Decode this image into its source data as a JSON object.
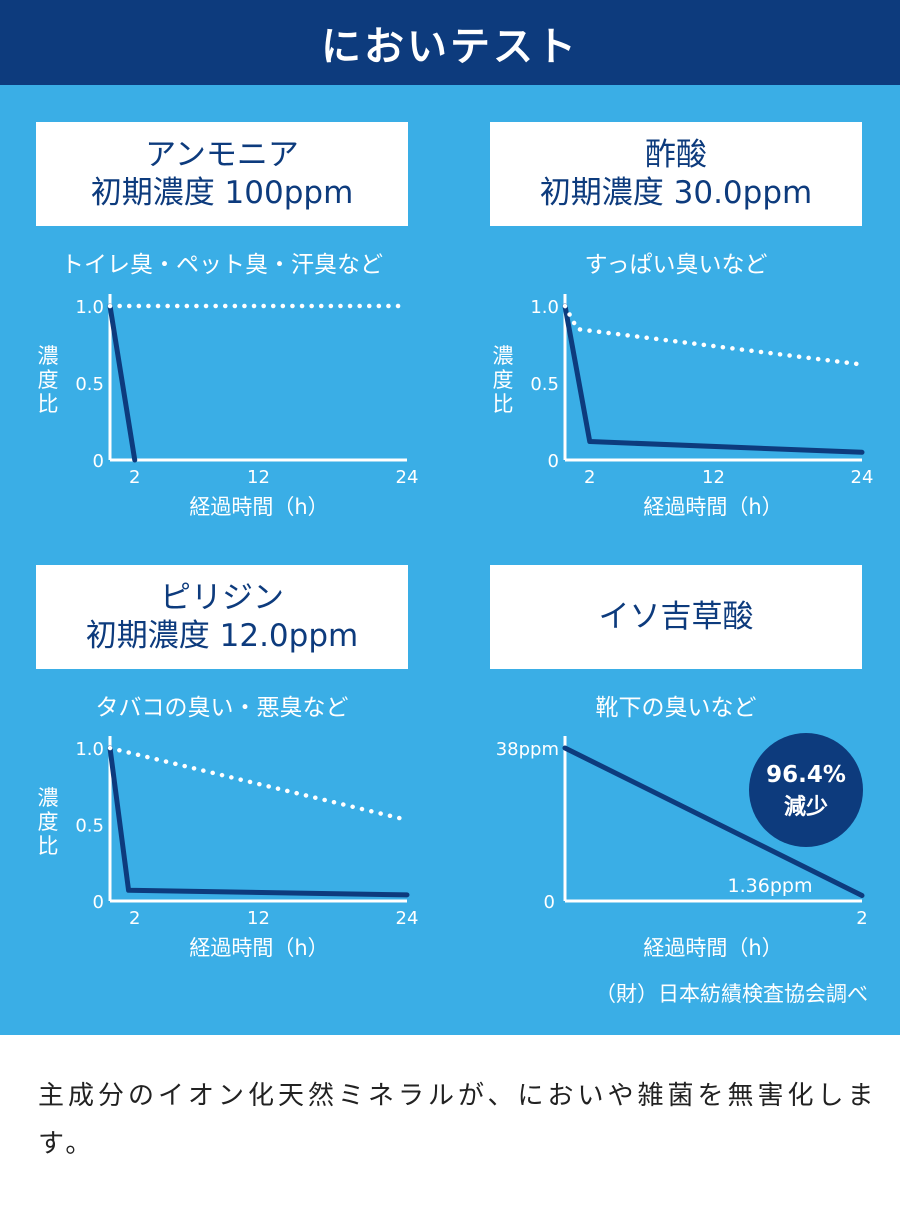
{
  "header": {
    "title": "においテスト"
  },
  "chart_data": [
    {
      "type": "line",
      "card": {
        "line1": "アンモニア",
        "line2": "初期濃度 100ppm"
      },
      "subtitle": "トイレ臭・ペット臭・汗臭など",
      "ylabel": "濃度比",
      "xlabel": "経過時間（h）",
      "yticks": [
        "1.0",
        "0.5",
        "0"
      ],
      "xticks": [
        "2",
        "12",
        "24"
      ],
      "xlim": [
        0,
        24
      ],
      "ylim": [
        0,
        1
      ],
      "series": [
        {
          "style": "solid",
          "points": [
            [
              0,
              1.0
            ],
            [
              2,
              0.0
            ]
          ]
        },
        {
          "style": "dotted",
          "points": [
            [
              0,
              1.0
            ],
            [
              24,
              1.0
            ]
          ]
        }
      ]
    },
    {
      "type": "line",
      "card": {
        "line1": "酢酸",
        "line2": "初期濃度 30.0ppm"
      },
      "subtitle": "すっぱい臭いなど",
      "ylabel": "濃度比",
      "xlabel": "経過時間（h）",
      "yticks": [
        "1.0",
        "0.5",
        "0"
      ],
      "xticks": [
        "2",
        "12",
        "24"
      ],
      "xlim": [
        0,
        24
      ],
      "ylim": [
        0,
        1
      ],
      "series": [
        {
          "style": "solid",
          "points": [
            [
              0,
              1.0
            ],
            [
              2,
              0.12
            ],
            [
              24,
              0.05
            ]
          ]
        },
        {
          "style": "dotted",
          "points": [
            [
              0,
              1.0
            ],
            [
              1,
              0.85
            ],
            [
              24,
              0.62
            ]
          ]
        }
      ]
    },
    {
      "type": "line",
      "card": {
        "line1": "ピリジン",
        "line2": "初期濃度 12.0ppm"
      },
      "subtitle": "タバコの臭い・悪臭など",
      "ylabel": "濃度比",
      "xlabel": "経過時間（h）",
      "yticks": [
        "1.0",
        "0.5",
        "0"
      ],
      "xticks": [
        "2",
        "12",
        "24"
      ],
      "xlim": [
        0,
        24
      ],
      "ylim": [
        0,
        1
      ],
      "series": [
        {
          "style": "solid",
          "points": [
            [
              0,
              1.0
            ],
            [
              1.5,
              0.07
            ],
            [
              24,
              0.04
            ]
          ]
        },
        {
          "style": "dotted",
          "points": [
            [
              0,
              1.0
            ],
            [
              24,
              0.53
            ]
          ]
        }
      ]
    },
    {
      "type": "line",
      "card": {
        "line1": "イソ吉草酸",
        "line2": ""
      },
      "subtitle": "靴下の臭いなど",
      "ylabel": "",
      "xlabel": "経過時間（h）",
      "ytick_top": "38ppm",
      "ytick_zero": "0",
      "xticks": [
        "2"
      ],
      "xlim": [
        0,
        2
      ],
      "ylim": [
        0,
        38
      ],
      "series": [
        {
          "style": "solid",
          "points": [
            [
              0,
              38
            ],
            [
              2,
              1.36
            ]
          ]
        }
      ],
      "end_label": "1.36ppm",
      "badge": {
        "line1": "96.4%",
        "line2": "減少"
      }
    }
  ],
  "source": "（財）日本紡績検査協会調べ",
  "footer": {
    "text": "主成分のイオン化天然ミネラルが、においや雑菌を無害化します。"
  },
  "colors": {
    "navy": "#0d3b7d",
    "sky": "#3aaee6",
    "white": "#ffffff"
  }
}
